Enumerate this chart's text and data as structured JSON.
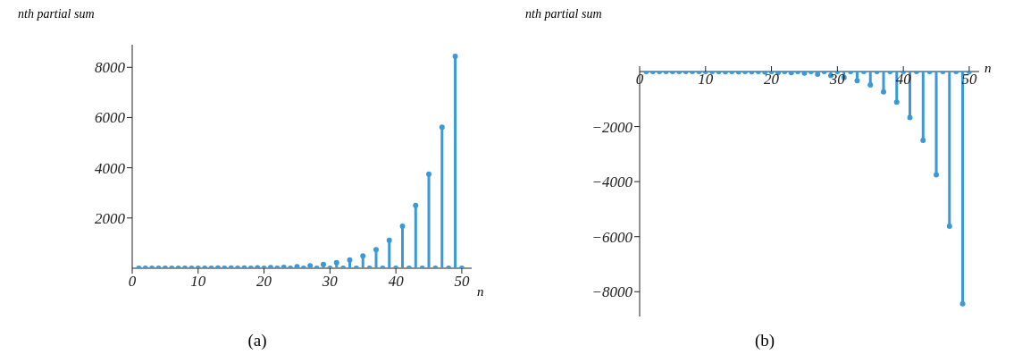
{
  "chart_data": [
    {
      "type": "lollipop",
      "title": "(a)",
      "xlabel": "n",
      "ylabel": "nth partial sum",
      "x": [
        1,
        2,
        3,
        4,
        5,
        6,
        7,
        8,
        9,
        10,
        11,
        12,
        13,
        14,
        15,
        16,
        17,
        18,
        19,
        20,
        21,
        22,
        23,
        24,
        25,
        26,
        27,
        28,
        29,
        30,
        31,
        32,
        33,
        34,
        35,
        36,
        37,
        38,
        39,
        40,
        41,
        42,
        43,
        44,
        45,
        46,
        47,
        48,
        49,
        50
      ],
      "values": [
        0,
        0,
        0,
        0,
        0,
        0,
        0,
        0,
        0,
        0,
        0,
        0,
        10,
        0,
        10,
        0,
        10,
        0,
        20,
        0,
        30,
        0,
        40,
        0,
        60,
        0,
        100,
        0,
        150,
        0,
        220,
        0,
        330,
        0,
        490,
        0,
        740,
        0,
        1110,
        0,
        1670,
        0,
        2500,
        0,
        3750,
        0,
        5620,
        0,
        8440,
        0
      ],
      "color": "#3a9ad9",
      "marker": "circle",
      "grid": false,
      "xlim": [
        0,
        51.5
      ],
      "xticks": [
        0,
        10,
        20,
        30,
        40,
        50
      ],
      "ylim": [
        0,
        8900
      ],
      "yticks": [
        2000,
        4000,
        6000,
        8000
      ]
    },
    {
      "type": "lollipop",
      "title": "(b)",
      "xlabel": "n",
      "ylabel": "nth partial sum",
      "x": [
        1,
        2,
        3,
        4,
        5,
        6,
        7,
        8,
        9,
        10,
        11,
        12,
        13,
        14,
        15,
        16,
        17,
        18,
        19,
        20,
        21,
        22,
        23,
        24,
        25,
        26,
        27,
        28,
        29,
        30,
        31,
        32,
        33,
        34,
        35,
        36,
        37,
        38,
        39,
        40,
        41,
        42,
        43,
        44,
        45,
        46,
        47,
        48,
        49,
        50
      ],
      "values": [
        0,
        0,
        0,
        0,
        0,
        0,
        0,
        0,
        0,
        0,
        0,
        0,
        -10,
        0,
        -10,
        0,
        -10,
        0,
        -20,
        0,
        -30,
        0,
        -40,
        0,
        -60,
        0,
        -100,
        0,
        -150,
        0,
        -220,
        0,
        -330,
        0,
        -490,
        0,
        -740,
        0,
        -1110,
        0,
        -1670,
        0,
        -2500,
        0,
        -3750,
        0,
        -5620,
        0,
        -8440,
        0
      ],
      "color": "#3a9ad9",
      "marker": "circle",
      "grid": false,
      "xlim": [
        0,
        51.5
      ],
      "xticks": [
        0,
        10,
        20,
        30,
        40,
        50
      ],
      "ylim": [
        -8900,
        0
      ],
      "yticks": [
        -2000,
        -4000,
        -6000,
        -8000
      ]
    }
  ]
}
